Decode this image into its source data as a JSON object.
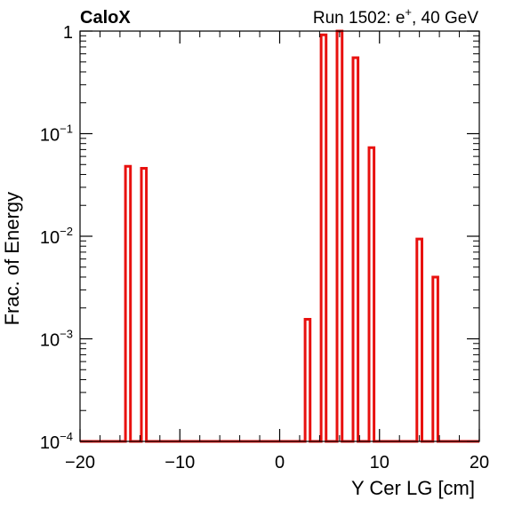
{
  "experiment_label": "CaloX",
  "run_info": {
    "prefix": "Run 1502: e",
    "superscript": "+",
    "suffix": ", 40 GeV"
  },
  "chart_data": {
    "type": "histogram",
    "title": "",
    "xlabel": "Y Cer LG [cm]",
    "ylabel": "Frac. of Energy",
    "xlim": [
      -20,
      20
    ],
    "ylim": [
      0.0001,
      1
    ],
    "yscale": "log",
    "grid": false,
    "line_color": "#e8110f",
    "x_major_ticks": [
      -20,
      -10,
      0,
      10,
      20
    ],
    "x_tick_labels": [
      "−20",
      "−10",
      "0",
      "10",
      "20"
    ],
    "y_major_ticks": [
      {
        "value": 0.0001,
        "base": "10",
        "exp": "−4"
      },
      {
        "value": 0.001,
        "base": "10",
        "exp": "−3"
      },
      {
        "value": 0.01,
        "base": "10",
        "exp": "−2"
      },
      {
        "value": 0.1,
        "base": "10",
        "exp": "−1"
      },
      {
        "value": 1,
        "base": "1",
        "exp": ""
      }
    ],
    "bins": [
      {
        "x0": -15.45,
        "x1": -14.95,
        "value": 0.048
      },
      {
        "x0": -13.85,
        "x1": -13.35,
        "value": 0.046
      },
      {
        "x0": 2.55,
        "x1": 3.05,
        "value": 0.00155
      },
      {
        "x0": 4.15,
        "x1": 4.65,
        "value": 0.92
      },
      {
        "x0": 5.75,
        "x1": 6.25,
        "value": 1.0
      },
      {
        "x0": 7.35,
        "x1": 7.85,
        "value": 0.55
      },
      {
        "x0": 8.95,
        "x1": 9.45,
        "value": 0.073
      },
      {
        "x0": 13.75,
        "x1": 14.25,
        "value": 0.0094
      },
      {
        "x0": 15.35,
        "x1": 15.85,
        "value": 0.004
      }
    ]
  }
}
